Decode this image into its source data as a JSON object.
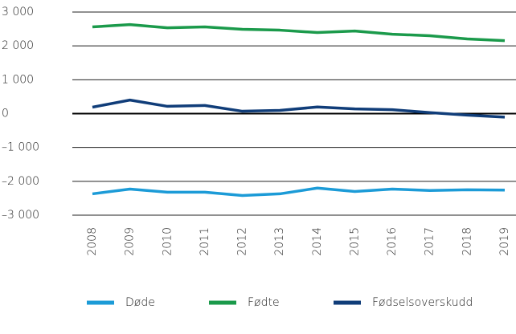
{
  "chart_data": {
    "type": "line",
    "categories": [
      "2008",
      "2009",
      "2010",
      "2011",
      "2012",
      "2013",
      "2014",
      "2015",
      "2016",
      "2017",
      "2018",
      "2019"
    ],
    "series": [
      {
        "name": "Døde",
        "color": "#1c9bd7",
        "values": [
          -2370,
          -2230,
          -2320,
          -2320,
          -2420,
          -2370,
          -2200,
          -2300,
          -2230,
          -2270,
          -2250,
          -2260
        ]
      },
      {
        "name": "Fødte",
        "color": "#1b9a4b",
        "values": [
          2560,
          2630,
          2535,
          2560,
          2490,
          2465,
          2395,
          2440,
          2345,
          2300,
          2205,
          2155
        ]
      },
      {
        "name": "Fødselsoverskudd",
        "color": "#103d79",
        "values": [
          190,
          400,
          215,
          240,
          70,
          95,
          195,
          140,
          115,
          30,
          -45,
          -105
        ]
      }
    ],
    "ylim": [
      -3000,
      3000
    ],
    "yticks": [
      {
        "value": -3000,
        "label": "–3 000"
      },
      {
        "value": -2000,
        "label": "–2 000"
      },
      {
        "value": -1000,
        "label": "–1 000"
      },
      0,
      {
        "value": 1000,
        "label": "1 000"
      },
      {
        "value": 2000,
        "label": "2 000"
      },
      {
        "value": 3000,
        "label": "3 000"
      }
    ],
    "grid": true
  }
}
